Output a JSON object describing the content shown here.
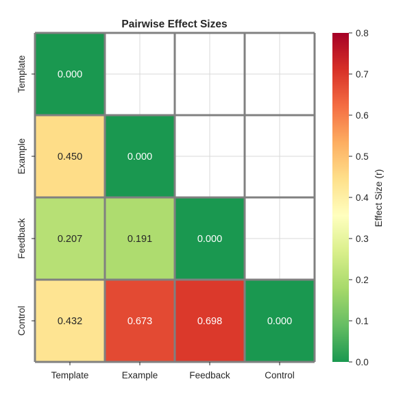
{
  "chart_data": {
    "type": "heatmap",
    "title": "Pairwise Effect Sizes",
    "xlabel": "",
    "ylabel": "",
    "x_categories": [
      "Template",
      "Example",
      "Feedback",
      "Control"
    ],
    "y_categories": [
      "Template",
      "Example",
      "Feedback",
      "Control"
    ],
    "mask": "upper triangle (above diagonal) empty",
    "values": [
      [
        0.0,
        null,
        null,
        null
      ],
      [
        0.45,
        0.0,
        null,
        null
      ],
      [
        0.207,
        0.191,
        0.0,
        null
      ],
      [
        0.432,
        0.673,
        0.698,
        0.0
      ]
    ],
    "value_labels": [
      [
        "0.000",
        "",
        "",
        ""
      ],
      [
        "0.450",
        "0.000",
        "",
        ""
      ],
      [
        "0.207",
        "0.191",
        "0.000",
        ""
      ],
      [
        "0.432",
        "0.673",
        "0.698",
        "0.000"
      ]
    ],
    "colorbar": {
      "label": "Effect Size (r)",
      "range": [
        0.0,
        0.8
      ],
      "ticks": [
        "0.0",
        "0.1",
        "0.2",
        "0.3",
        "0.4",
        "0.5",
        "0.6",
        "0.7",
        "0.8"
      ],
      "colormap": "RdYlGn reversed",
      "colormap_stops": [
        "#1a9850",
        "#66bd63",
        "#a6d96a",
        "#d9ef8b",
        "#ffffbf",
        "#fee08b",
        "#fdae61",
        "#f46d43",
        "#d73027",
        "#a50026"
      ]
    },
    "grid": true
  }
}
